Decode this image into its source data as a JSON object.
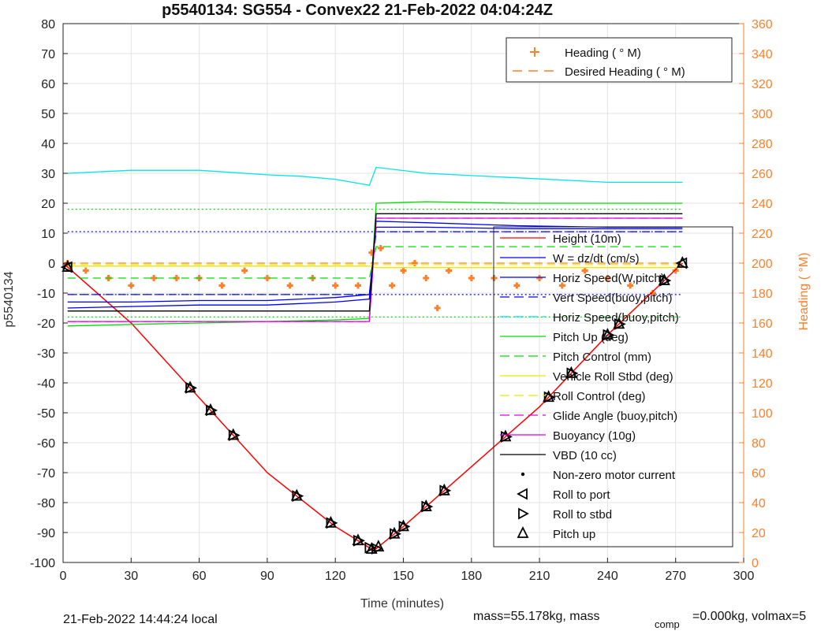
{
  "chart_data": {
    "type": "line",
    "title": "p5540134: SG554 - Convex22 21-Feb-2022 04:04:24Z",
    "xlabel": "Time (minutes)",
    "ylabel_left": "p5540134",
    "ylabel_right": "Heading (  °M)",
    "xlim": [
      0,
      300
    ],
    "ylim_left": [
      -100,
      80
    ],
    "ylim_right": [
      0,
      360
    ],
    "xticks": [
      0,
      30,
      60,
      90,
      120,
      150,
      180,
      210,
      240,
      270,
      300
    ],
    "yticks_left": [
      80,
      70,
      60,
      50,
      40,
      30,
      20,
      10,
      0,
      -10,
      -20,
      -30,
      -40,
      -50,
      -60,
      -70,
      -80,
      -90,
      -100
    ],
    "yticks_right": [
      360,
      340,
      320,
      300,
      280,
      260,
      240,
      220,
      200,
      180,
      160,
      140,
      120,
      100,
      80,
      60,
      40,
      20,
      0
    ],
    "grid": true,
    "legend_top": {
      "placement": "top-right",
      "entries": [
        "Heading (  ° M)",
        "Desired Heading (    ° M)"
      ]
    },
    "legend_main": {
      "placement": "right",
      "entries": [
        "Height (10m)",
        "W = dz/dt (cm/s)",
        "Horiz Speed(W,pitch)",
        "Vert Speed(buoy,pitch)",
        "Horiz Speed(buoy,pitch)",
        "Pitch Up (deg)",
        "Pitch Control (mm)",
        "Vehicle Roll Stbd (deg)",
        "Roll Control (deg)",
        "Glide Angle (buoy,pitch)",
        "Buoyancy (10g)",
        "VBD (10 cc)",
        "Non-zero motor current",
        "Roll to port",
        "Roll to stbd",
        "Pitch up"
      ]
    },
    "series": [
      {
        "name": "Height (10m)",
        "color": "#ff0000",
        "x": [
          0,
          30,
          60,
          90,
          120,
          137,
          150,
          180,
          210,
          240,
          273
        ],
        "y": [
          0,
          -20,
          -45,
          -70,
          -88,
          -96,
          -88,
          -68,
          -48,
          -24,
          0
        ]
      },
      {
        "name": "W = dz/dt (cm/s)",
        "color": "#0000ff",
        "x": [
          2,
          30,
          60,
          90,
          120,
          135,
          138,
          160,
          200,
          240,
          273
        ],
        "y": [
          -13,
          -13,
          -12.5,
          -12.5,
          -11.5,
          -10.5,
          12,
          12,
          11.5,
          11.5,
          11.5
        ]
      },
      {
        "name": "Horiz Speed(W,pitch)",
        "color": "#0000ff",
        "x": [
          2,
          30,
          60,
          90,
          120,
          135,
          138,
          160,
          200,
          240,
          273
        ],
        "y": [
          -15,
          -14.5,
          -14,
          -14,
          -13,
          -12,
          14,
          13.5,
          12.5,
          12,
          12
        ]
      },
      {
        "name": "Vert Speed(buoy,pitch)",
        "color": "#0000ff",
        "x": [
          2,
          135,
          138,
          273
        ],
        "y": [
          -10.5,
          -10.5,
          10.5,
          10.5
        ]
      },
      {
        "name": "Horiz Speed(buoy,pitch)",
        "color": "#00e5e5",
        "x": [
          2,
          30,
          60,
          90,
          105,
          120,
          135,
          138,
          160,
          200,
          240,
          273
        ],
        "y": [
          30,
          31,
          31,
          29.5,
          29,
          28,
          26,
          32,
          30,
          28.5,
          27,
          27
        ]
      },
      {
        "name": "Pitch Up (deg)",
        "color": "#00dd00",
        "x": [
          2,
          30,
          60,
          90,
          120,
          135,
          138,
          160,
          200,
          240,
          273
        ],
        "y": [
          -21,
          -20.5,
          -20,
          -19.5,
          -19,
          -18.5,
          20,
          20.5,
          20,
          20,
          20
        ]
      },
      {
        "name": "Pitch Control (mm)",
        "color": "#00dd00",
        "x": [
          2,
          135,
          138,
          273
        ],
        "y": [
          -5,
          -5,
          5.5,
          5.5
        ]
      },
      {
        "name": "Vehicle Roll Stbd (deg)",
        "color": "#e8e800",
        "x": [
          2,
          30,
          60,
          90,
          120,
          135,
          138,
          180,
          240,
          273
        ],
        "y": [
          -1,
          -1,
          -1,
          -1,
          -1,
          -1,
          -1.5,
          -1.5,
          -1.5,
          -1.5
        ]
      },
      {
        "name": "Roll Control (deg)",
        "color": "#e8e800",
        "x": [
          2,
          273
        ],
        "y": [
          -0.5,
          -0.5
        ]
      },
      {
        "name": "Glide Angle (buoy,pitch)",
        "color": "#dd00dd",
        "x": [
          2,
          135,
          138,
          273
        ],
        "y": [
          -19.5,
          -19.5,
          15,
          15
        ]
      },
      {
        "name": "Buoyancy (10g)",
        "color": "#dd00dd",
        "x": [
          2,
          135,
          138,
          273
        ],
        "y": [
          -19.5,
          -19.5,
          15,
          15
        ]
      },
      {
        "name": "VBD (10 cc)",
        "color": "#000000",
        "x": [
          2,
          135,
          138,
          273
        ],
        "y": [
          -16,
          -16,
          16.5,
          16.5
        ]
      }
    ],
    "heading_series": {
      "name": "Heading (  ° M)",
      "color": "#ff7f2a",
      "x": [
        2,
        10,
        20,
        30,
        40,
        50,
        60,
        70,
        80,
        90,
        100,
        110,
        120,
        130,
        136,
        140,
        145,
        150,
        155,
        160,
        165,
        170,
        180,
        190,
        200,
        210,
        220,
        230,
        240,
        250,
        260,
        270
      ],
      "y": [
        200,
        195,
        190,
        185,
        190,
        190,
        190,
        185,
        195,
        190,
        185,
        190,
        185,
        185,
        207,
        210,
        185,
        195,
        200,
        190,
        170,
        195,
        190,
        190,
        185,
        190,
        185,
        195,
        190,
        185,
        180,
        195
      ]
    },
    "desired_heading": {
      "name": "Desired Heading (    ° M)",
      "color": "#ff7f2a",
      "y": 200
    },
    "dotted_reference_lines": [
      {
        "color": "#00dd00",
        "y": 18
      },
      {
        "color": "#0000ff",
        "y": 10.5
      },
      {
        "color": "#0000ff",
        "y": -10.5
      },
      {
        "color": "#00dd00",
        "y": -18
      }
    ],
    "markers": {
      "roll_to_port_x": [
        2,
        273
      ],
      "roll_to_stbd_x": [
        56,
        65,
        75,
        103,
        118,
        130,
        135,
        138,
        146,
        150,
        160,
        168,
        195,
        214,
        224,
        240,
        245,
        265
      ],
      "pitch_up_x": [
        2,
        56,
        65,
        75,
        103,
        118,
        130,
        136,
        139,
        146,
        150,
        160,
        168,
        195,
        214,
        224,
        240,
        245,
        265,
        273
      ]
    }
  },
  "footer": {
    "left": "21-Feb-2022 14:44:24 local",
    "right_a": "mass=55.178kg, mass",
    "right_sub": "comp",
    "right_b": "=0.000kg, volmax=5"
  }
}
